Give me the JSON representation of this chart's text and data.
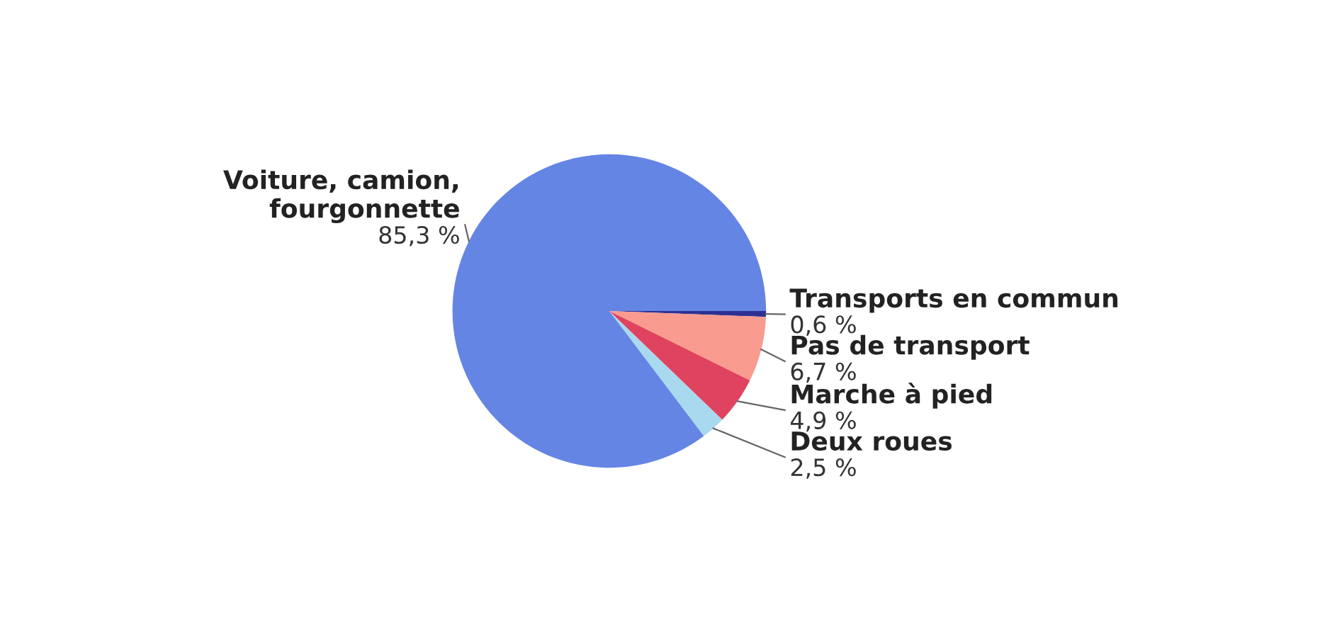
{
  "chart_data": {
    "type": "pie",
    "categories": [
      "Transports en commun",
      "Pas de transport",
      "Marche à pied",
      "Deux roues",
      "Voiture, camion,\nfourgonnette"
    ],
    "values": [
      0.6,
      6.7,
      4.9,
      2.5,
      85.3
    ],
    "value_labels": [
      "0,6 %",
      "6,7 %",
      "4,9 %",
      "2,5 %",
      "85,3 %"
    ],
    "colors": [
      "#2e3192",
      "#f99b8f",
      "#e0435f",
      "#a8d9ef",
      "#6585e4"
    ]
  }
}
